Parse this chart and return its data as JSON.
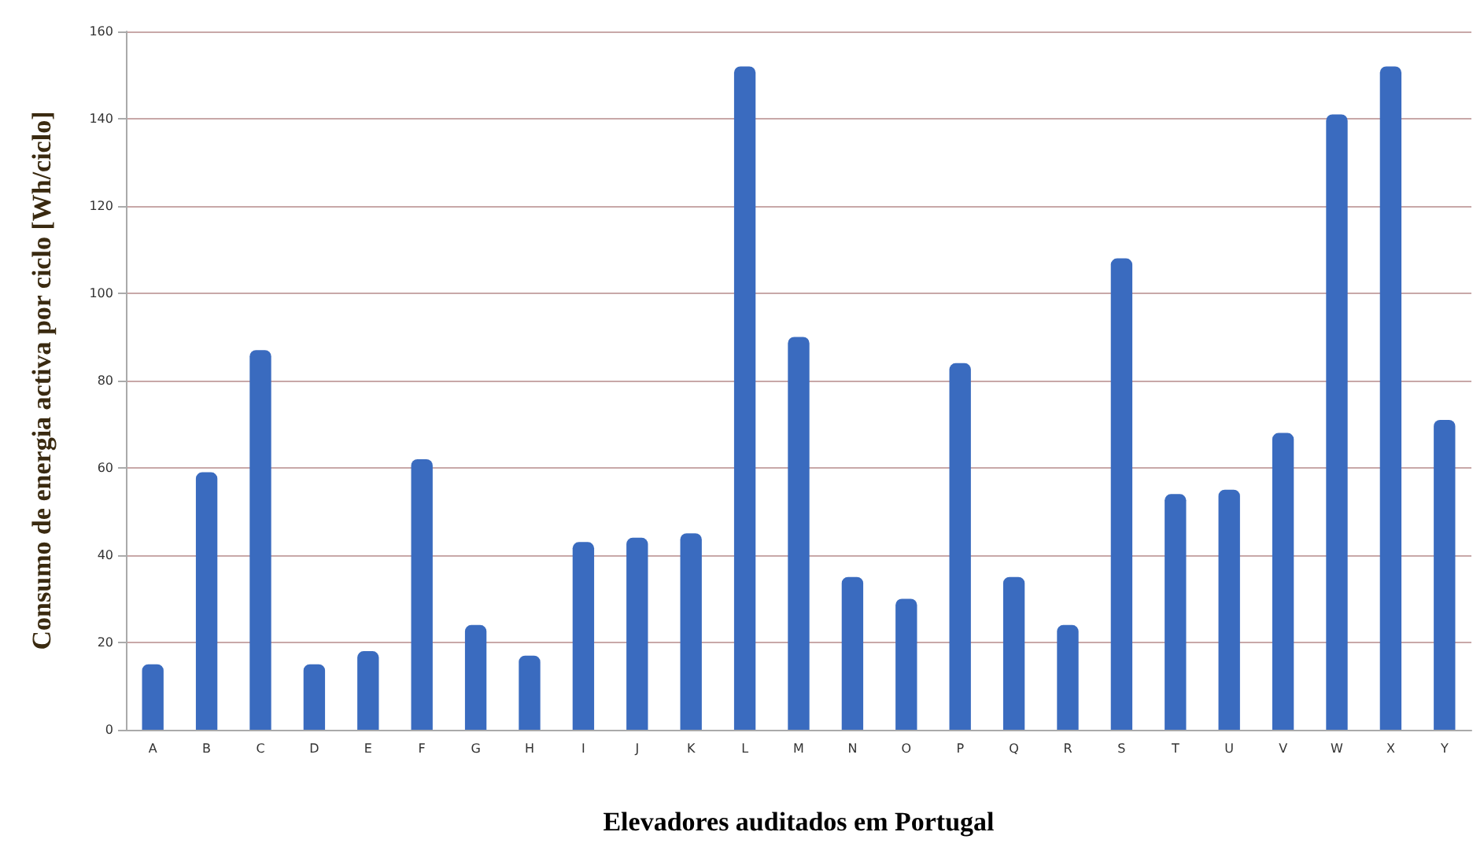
{
  "chart_data": {
    "type": "bar",
    "xlabel": "Elevadores auditados em Portugal",
    "ylabel": "Consumo de energia activa por ciclo [Wh/ciclo]",
    "categories": [
      "A",
      "B",
      "C",
      "D",
      "E",
      "F",
      "G",
      "H",
      "I",
      "J",
      "K",
      "L",
      "M",
      "N",
      "O",
      "P",
      "Q",
      "R",
      "S",
      "T",
      "U",
      "V",
      "W",
      "X",
      "Y"
    ],
    "values": [
      15,
      59,
      87,
      15,
      18,
      62,
      24,
      17,
      43,
      44,
      45,
      152,
      90,
      35,
      30,
      84,
      35,
      24,
      108,
      54,
      55,
      68,
      141,
      152,
      71
    ],
    "color": "#3a6bbf",
    "ylim": [
      0,
      160
    ],
    "yticks": [
      0,
      20,
      40,
      60,
      80,
      100,
      120,
      140,
      160
    ],
    "grid": "y"
  }
}
